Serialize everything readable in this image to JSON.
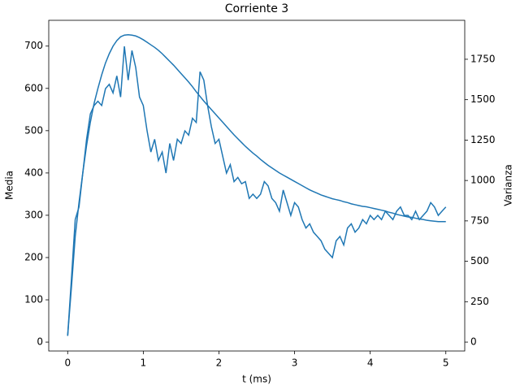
{
  "chart_data": {
    "type": "line",
    "title": "Corriente 3",
    "x_label": "t (ms)",
    "y_label": "Media",
    "y2_label": "Varianza",
    "x": [
      0,
      0.05,
      0.1,
      0.15,
      0.2,
      0.25,
      0.3,
      0.35,
      0.4,
      0.45,
      0.5,
      0.55,
      0.6,
      0.65,
      0.7,
      0.75,
      0.8,
      0.85,
      0.9,
      0.95,
      1,
      1.05,
      1.1,
      1.15,
      1.2,
      1.25,
      1.3,
      1.35,
      1.4,
      1.45,
      1.5,
      1.55,
      1.6,
      1.65,
      1.7,
      1.75,
      1.8,
      1.85,
      1.9,
      1.95,
      2,
      2.05,
      2.1,
      2.15,
      2.2,
      2.25,
      2.3,
      2.35,
      2.4,
      2.45,
      2.5,
      2.55,
      2.6,
      2.65,
      2.7,
      2.75,
      2.8,
      2.85,
      2.9,
      2.95,
      3,
      3.05,
      3.1,
      3.15,
      3.2,
      3.25,
      3.3,
      3.35,
      3.4,
      3.45,
      3.5,
      3.55,
      3.6,
      3.65,
      3.7,
      3.75,
      3.8,
      3.85,
      3.9,
      3.95,
      4,
      4.05,
      4.1,
      4.15,
      4.2,
      4.25,
      4.3,
      4.35,
      4.4,
      4.45,
      4.5,
      4.55,
      4.6,
      4.65,
      4.7,
      4.75,
      4.8,
      4.85,
      4.9,
      4.95,
      5
    ],
    "series": [
      {
        "name": "Media",
        "color": "#1f77b4",
        "axis": "y",
        "values": [
          15,
          130,
          250,
          330,
          400,
          465,
          520,
          565,
          600,
          632,
          660,
          682,
          700,
          713,
          722,
          726,
          727,
          726,
          724,
          720,
          715,
          709,
          703,
          697,
          690,
          682,
          673,
          664,
          655,
          645,
          635,
          625,
          615,
          604,
          592,
          581,
          570,
          560,
          550,
          540,
          530,
          520,
          510,
          500,
          490,
          481,
          472,
          463,
          455,
          447,
          440,
          432,
          425,
          418,
          412,
          406,
          400,
          395,
          390,
          385,
          380,
          375,
          370,
          365,
          360,
          356,
          352,
          348,
          345,
          342,
          339,
          337,
          335,
          332,
          330,
          327,
          325,
          323,
          321,
          320,
          318,
          316,
          314,
          312,
          310,
          307,
          305,
          302,
          300,
          298,
          296,
          295,
          293,
          291,
          290,
          288,
          287,
          286,
          285,
          285,
          285
        ]
      },
      {
        "name": "Varianza",
        "color": "#1f77b4",
        "axis": "y2",
        "values": [
          39,
          392,
          758,
          836,
          1046,
          1255,
          1412,
          1464,
          1490,
          1464,
          1568,
          1595,
          1542,
          1647,
          1516,
          1830,
          1621,
          1804,
          1699,
          1516,
          1464,
          1307,
          1176,
          1255,
          1124,
          1176,
          1046,
          1229,
          1124,
          1255,
          1229,
          1307,
          1281,
          1385,
          1359,
          1673,
          1621,
          1464,
          1333,
          1229,
          1255,
          1150,
          1046,
          1098,
          993,
          1019,
          980,
          993,
          889,
          915,
          889,
          915,
          993,
          967,
          889,
          863,
          810,
          941,
          863,
          784,
          863,
          836,
          758,
          706,
          732,
          680,
          654,
          627,
          575,
          549,
          523,
          627,
          654,
          601,
          706,
          732,
          680,
          706,
          758,
          732,
          784,
          758,
          784,
          758,
          810,
          784,
          758,
          810,
          836,
          784,
          784,
          758,
          810,
          758,
          784,
          810,
          863,
          836,
          784,
          810,
          836
        ]
      }
    ],
    "xlim": [
      -0.25,
      5.25
    ],
    "xticks": [
      0,
      1,
      2,
      3,
      4,
      5
    ],
    "ylim": [
      -21,
      761
    ],
    "yticks": [
      0,
      100,
      200,
      300,
      400,
      500,
      600,
      700
    ],
    "y2lim": [
      -55,
      1991
    ],
    "y2ticks": [
      0,
      250,
      500,
      750,
      1000,
      1250,
      1500,
      1750
    ]
  }
}
